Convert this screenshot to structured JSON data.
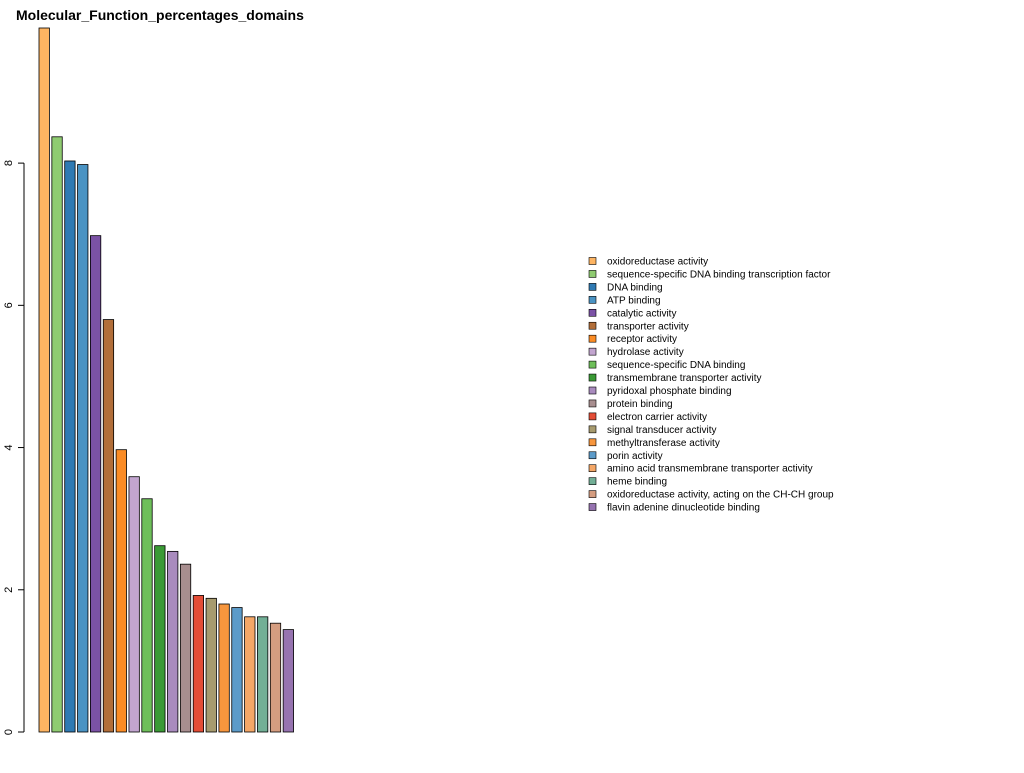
{
  "chart_data": {
    "type": "bar",
    "title": "Molecular_Function_percentages_domains",
    "xlabel": "",
    "ylabel": "",
    "ylim": [
      0,
      9.9
    ],
    "yticks": [
      0,
      2,
      4,
      6,
      8
    ],
    "legend_position": "right",
    "categories": [
      "oxidoreductase activity",
      "sequence-specific DNA binding transcription factor",
      "DNA binding",
      "ATP binding",
      "catalytic activity",
      "transporter activity",
      "receptor activity",
      "hydrolase activity",
      "sequence-specific DNA binding",
      "transmembrane transporter activity",
      "pyridoxal phosphate binding",
      "protein binding",
      "electron carrier activity",
      "signal transducer activity",
      "methyltransferase activity",
      "porin activity",
      "amino acid transmembrane transporter activity",
      "heme binding",
      "oxidoreductase activity, acting on the CH-CH group",
      "flavin adenine dinucleotide binding"
    ],
    "values": [
      9.9,
      8.37,
      8.03,
      7.98,
      6.98,
      5.8,
      3.97,
      3.59,
      3.28,
      2.62,
      2.54,
      2.36,
      1.92,
      1.88,
      1.8,
      1.75,
      1.62,
      1.62,
      1.53,
      1.44
    ],
    "colors": [
      "#FDB462",
      "#8FCB71",
      "#2F7AB3",
      "#4A93C3",
      "#7B52A5",
      "#B26E39",
      "#FB8C25",
      "#C2A5CF",
      "#6EBF5A",
      "#3A9A35",
      "#A98BBE",
      "#A88E8F",
      "#E44D36",
      "#A79B6E",
      "#F7963D",
      "#5C9BC9",
      "#F4A767",
      "#72AF96",
      "#D59D80",
      "#9673B0"
    ]
  }
}
